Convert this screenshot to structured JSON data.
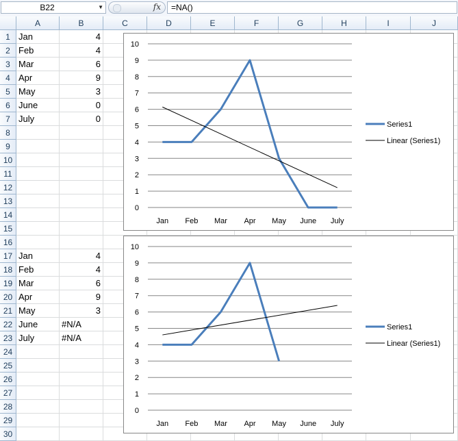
{
  "formula_bar": {
    "name_box": "B22",
    "fx_label": "fx",
    "formula": "=NA()"
  },
  "column_headers": [
    "A",
    "B",
    "C",
    "D",
    "E",
    "F",
    "G",
    "H",
    "I",
    "J"
  ],
  "row_headers": [
    "1",
    "2",
    "3",
    "4",
    "5",
    "6",
    "7",
    "8",
    "9",
    "10",
    "11",
    "12",
    "13",
    "14",
    "15",
    "16",
    "17",
    "18",
    "19",
    "20",
    "21",
    "22",
    "23",
    "24",
    "25",
    "26",
    "27",
    "28",
    "29",
    "30"
  ],
  "cells": {
    "A1": "Jan",
    "B1": "4",
    "A2": "Feb",
    "B2": "4",
    "A3": "Mar",
    "B3": "6",
    "A4": "Apr",
    "B4": "9",
    "A5": "May",
    "B5": "3",
    "A6": "June",
    "B6": "0",
    "A7": "July",
    "B7": "0",
    "A17": "Jan",
    "B17": "4",
    "A18": "Feb",
    "B18": "4",
    "A19": "Mar",
    "B19": "6",
    "A20": "Apr",
    "B20": "9",
    "A21": "May",
    "B21": "3",
    "A22": "June",
    "B22": "#N/A",
    "A23": "July",
    "B23": "#N/A"
  },
  "colors": {
    "series": "#4a7ebb",
    "trendline": "#000000",
    "gridline": "#868686",
    "header_text": "#1e3c5a"
  },
  "chart_data": [
    {
      "type": "line",
      "categories": [
        "Jan",
        "Feb",
        "Mar",
        "Apr",
        "May",
        "June",
        "July"
      ],
      "series": [
        {
          "name": "Series1",
          "values": [
            4,
            4,
            6,
            9,
            3,
            0,
            0
          ]
        },
        {
          "name": "Linear (Series1)",
          "values": [
            6.14,
            5.32,
            4.5,
            3.68,
            2.86,
            2.04,
            1.21
          ]
        }
      ],
      "ylim": [
        0,
        10
      ],
      "yticks": [
        "0",
        "1",
        "2",
        "3",
        "4",
        "5",
        "6",
        "7",
        "8",
        "9",
        "10"
      ],
      "grid": true,
      "legend": "right"
    },
    {
      "type": "line",
      "categories": [
        "Jan",
        "Feb",
        "Mar",
        "Apr",
        "May",
        "June",
        "July"
      ],
      "series": [
        {
          "name": "Series1",
          "values": [
            4,
            4,
            6,
            9,
            3,
            null,
            null
          ]
        },
        {
          "name": "Linear (Series1)",
          "values": [
            4.6,
            4.9,
            5.2,
            5.5,
            5.8,
            6.1,
            6.4
          ]
        }
      ],
      "ylim": [
        0,
        10
      ],
      "yticks": [
        "0",
        "1",
        "2",
        "3",
        "4",
        "5",
        "6",
        "7",
        "8",
        "9",
        "10"
      ],
      "grid": true,
      "legend": "right"
    }
  ]
}
